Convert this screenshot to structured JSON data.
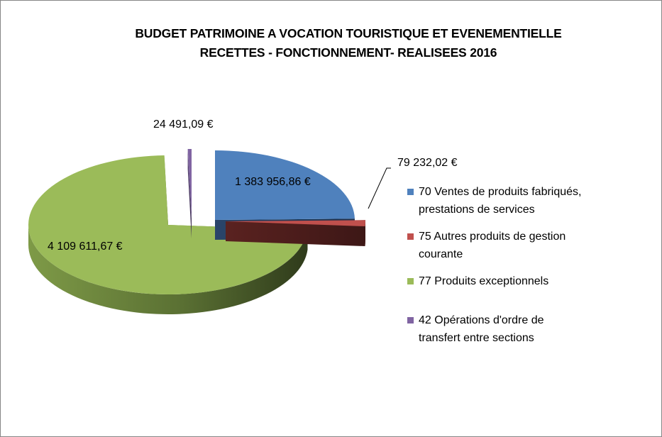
{
  "chart_data": {
    "type": "pie",
    "style": "3d-exploded",
    "title": [
      "BUDGET PATRIMOINE A VOCATION TOURISTIQUE ET EVENEMENTIELLE",
      "RECETTES - FONCTIONNEMENT- REALISEES  2016"
    ],
    "legend_position": "right",
    "slices": [
      {
        "code": "70",
        "label": "70 Ventes de produits fabriqués, prestations de services",
        "legend_lines": [
          "70 Ventes de produits fabriqués,",
          "prestations de services"
        ],
        "value": 1383956.86,
        "value_label": "1 383 956,86 €",
        "color": "#4f81bd"
      },
      {
        "code": "75",
        "label": "75 Autres produits de gestion courante",
        "legend_lines": [
          "75 Autres produits de gestion",
          "courante"
        ],
        "value": 79232.02,
        "value_label": "79 232,02 €",
        "color": "#c0504d"
      },
      {
        "code": "77",
        "label": "77 Produits exceptionnels",
        "legend_lines": [
          "77 Produits exceptionnels"
        ],
        "value": 4109611.67,
        "value_label": "4 109 611,67 €",
        "color": "#9bbb59"
      },
      {
        "code": "42",
        "label": "42 Opérations d'ordre de transfert entre sections",
        "legend_lines": [
          "42 Opérations d'ordre de",
          "transfert entre sections"
        ],
        "value": 24491.09,
        "value_label": "24 491,09 €",
        "color": "#8064a2"
      }
    ]
  }
}
